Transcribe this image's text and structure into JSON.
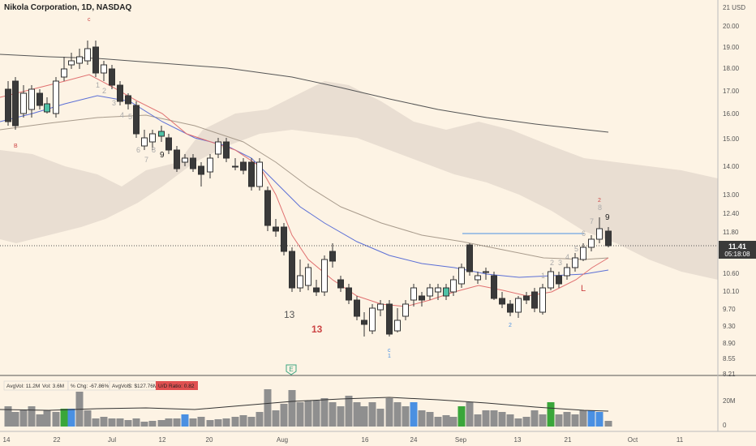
{
  "header": {
    "symbol_title": "Nikola Corporation, 1D, NASDAQ"
  },
  "axis": {
    "currency": "21 USD",
    "ticks": [
      "20.00",
      "19.00",
      "18.00",
      "17.00",
      "16.00",
      "15.00",
      "14.00",
      "13.00",
      "12.40",
      "11.80",
      "10.60",
      "10.10",
      "9.70",
      "9.30",
      "8.90",
      "8.55",
      "8.21"
    ],
    "vol_ticks": [
      "20M",
      "0"
    ],
    "x_ticks": [
      "14",
      "22",
      "Jul",
      "12",
      "20",
      "Aug",
      "16",
      "24",
      "Sep",
      "13",
      "21",
      "Oct",
      "11"
    ]
  },
  "price_tag": {
    "price": "11.41",
    "countdown": "05:18:08"
  },
  "volume_info": {
    "avgvol": "AvgVol: 11.2M",
    "vol": "Vol: 3.6M",
    "chg": "% Chg: -67.86%",
    "avgvolusd": "AvgVol$: $127.76M",
    "udr": "U/D Ratio: 0.82"
  },
  "annotations": {
    "c_top": "c",
    "b_left": "B",
    "c_bottom": "c",
    "one_bottom": "1",
    "thirteen_black": "13",
    "thirteen_red": "13",
    "earnings": "E",
    "nine_a": "9",
    "nine_b": "9",
    "L": "L",
    "two_sep": "2",
    "seq_gray": [
      "1",
      "2",
      "3",
      "4",
      "5",
      "6",
      "7",
      "8"
    ],
    "seq_right": [
      "1",
      "2",
      "3",
      "4",
      "5",
      "6",
      "7",
      "8"
    ],
    "red_two": "2"
  },
  "colors": {
    "background": "#fdf3e4",
    "up_candle": "#ffffff",
    "down_candle": "#3a3a3a",
    "signal_teal": "#4fc2a6",
    "cloud": "#e7dccf",
    "volume_gray": "#8f8f8f",
    "volume_blue": "#4a90e2",
    "volume_green": "#3aa63a",
    "price_tag": "#3a3a3a"
  }
}
